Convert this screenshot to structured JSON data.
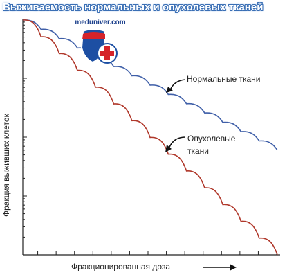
{
  "title": "Выживаемость нормальных и опухолевых тканей",
  "watermark": {
    "text": "meduniver.com",
    "icon": "medical-cross-shield-icon",
    "colors": {
      "shield_blue": "#1d4fa3",
      "shield_red": "#d5232a",
      "cross_white": "#ffffff"
    }
  },
  "chart_data": {
    "type": "line",
    "xlabel": "Фракционированная доза",
    "ylabel": "Фракция выживших клеток",
    "y_scale": "log",
    "grid": false,
    "fractions": 14,
    "series": [
      {
        "key": "normal",
        "name": "Нормальные ткани",
        "color": "#3f5fa8",
        "start": 1.0,
        "end": 0.27,
        "shoulder": 0.45
      },
      {
        "key": "tumor",
        "name": "Опухолевые ткани",
        "name_lines": [
          "Опухолевые",
          "ткани"
        ],
        "color": "#b0382b",
        "start": 1.0,
        "end": 0.0,
        "shoulder": 0.3
      }
    ]
  }
}
